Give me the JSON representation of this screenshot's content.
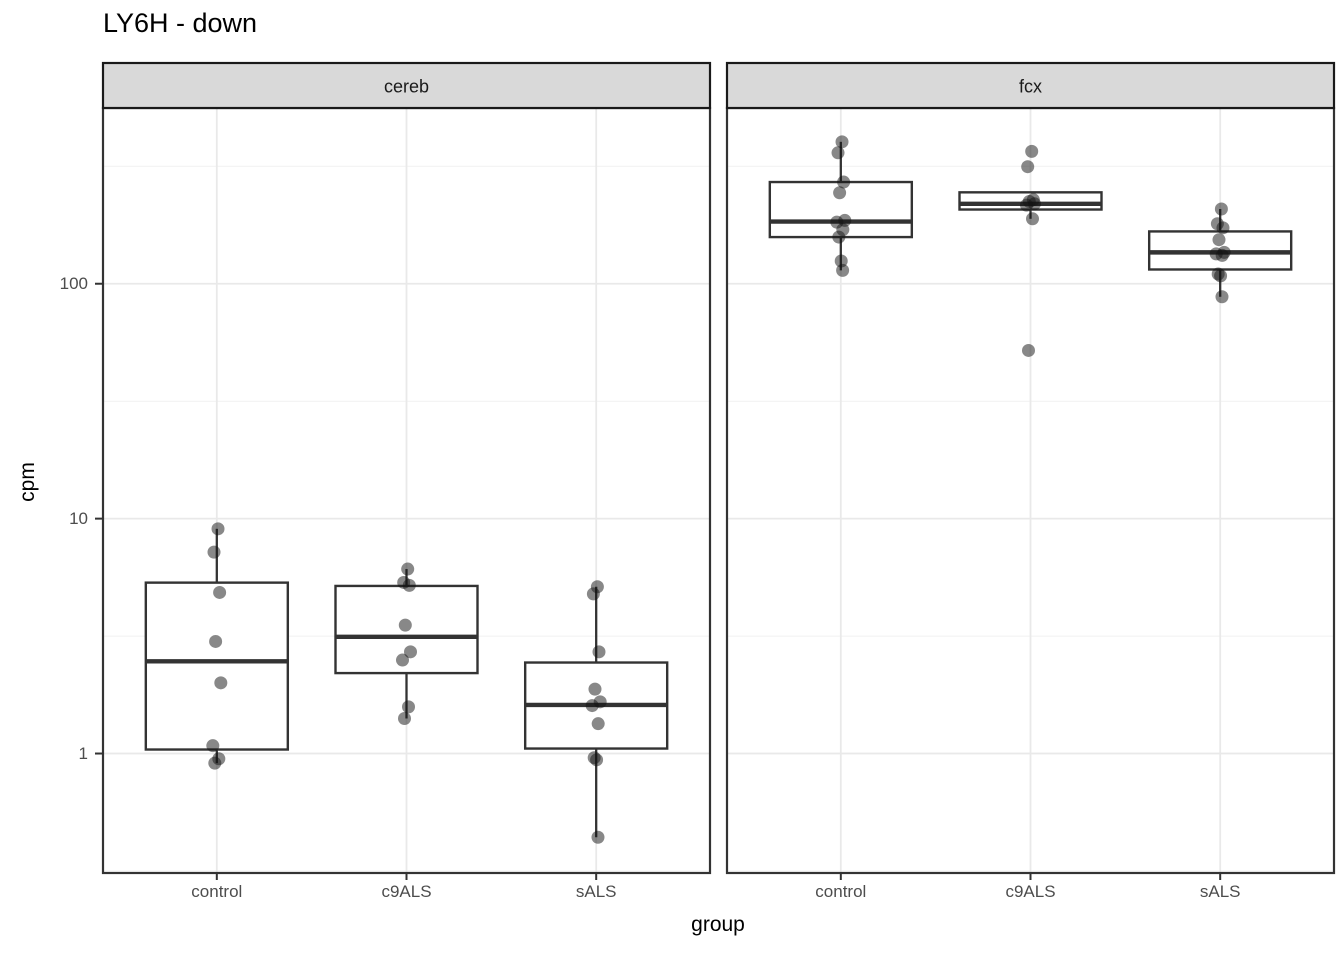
{
  "title": "LY6H - down",
  "axes": {
    "x_title": "group",
    "y_title": "cpm",
    "x_categories": [
      "control",
      "c9ALS",
      "sALS"
    ],
    "y_ticks": [
      {
        "label": "100",
        "value": 100
      },
      {
        "label": "10",
        "value": 10
      },
      {
        "label": "1",
        "value": 1
      }
    ],
    "y_minor_values": [
      316.23,
      31.623,
      3.1623,
      0.31623
    ]
  },
  "colors": {
    "background": "#ffffff",
    "strip_bg": "#d9d9d9",
    "strip_border": "#1a1a1a",
    "panel_border": "#333333",
    "grid_major": "#e9e9e9",
    "grid_minor": "#f1f1f1",
    "box_stroke": "#333333",
    "box_fill": "#ffffff",
    "point": "#111111",
    "axis_text": "#4d4d4d",
    "tick_mark": "#333333"
  },
  "chart_data": {
    "type": "boxplot",
    "title": "LY6H - down",
    "xlabel": "group",
    "ylabel": "cpm",
    "y_scale": "log10",
    "ylim": [
      0.31,
      560
    ],
    "grid": true,
    "categories": [
      "control",
      "c9ALS",
      "sALS"
    ],
    "facets": [
      {
        "label": "cereb",
        "groups": [
          {
            "category": "control",
            "box": {
              "q1": 1.04,
              "median": 2.47,
              "q3": 5.34,
              "whisker_low": 0.91,
              "whisker_high": 9.05
            },
            "points": [
              9.05,
              7.2,
              4.85,
              3.0,
              2.0,
              1.08,
              0.95,
              0.91
            ]
          },
          {
            "category": "c9ALS",
            "box": {
              "q1": 2.2,
              "median": 3.14,
              "q3": 5.17,
              "whisker_low": 1.41,
              "whisker_high": 6.1
            },
            "points": [
              6.1,
              5.35,
              5.2,
              3.52,
              2.71,
              2.5,
              1.58,
              1.41
            ]
          },
          {
            "category": "sALS",
            "box": {
              "q1": 1.05,
              "median": 1.61,
              "q3": 2.44,
              "whisker_low": 0.44,
              "whisker_high": 5.13
            },
            "points": [
              5.13,
              4.78,
              2.71,
              1.88,
              1.66,
              1.6,
              1.34,
              0.96,
              0.94,
              0.44
            ]
          }
        ]
      },
      {
        "label": "fcx",
        "groups": [
          {
            "category": "control",
            "box": {
              "q1": 158,
              "median": 184,
              "q3": 271,
              "whisker_low": 114,
              "whisker_high": 402
            },
            "points": [
              402,
              361,
              271,
              244,
              186,
              183,
              170,
              158,
              125,
              114
            ]
          },
          {
            "category": "c9ALS",
            "box": {
              "q1": 207,
              "median": 219,
              "q3": 245,
              "whisker_low": 189,
              "whisker_high": 245
            },
            "points": [
              366,
              315,
              228,
              224,
              219,
              216,
              189,
              52
            ]
          },
          {
            "category": "sALS",
            "box": {
              "q1": 115,
              "median": 136,
              "q3": 167,
              "whisker_low": 88,
              "whisker_high": 208
            },
            "points": [
              208,
              180,
              173,
              154,
              136,
              134,
              132,
              110,
              108,
              88
            ]
          }
        ]
      }
    ]
  }
}
